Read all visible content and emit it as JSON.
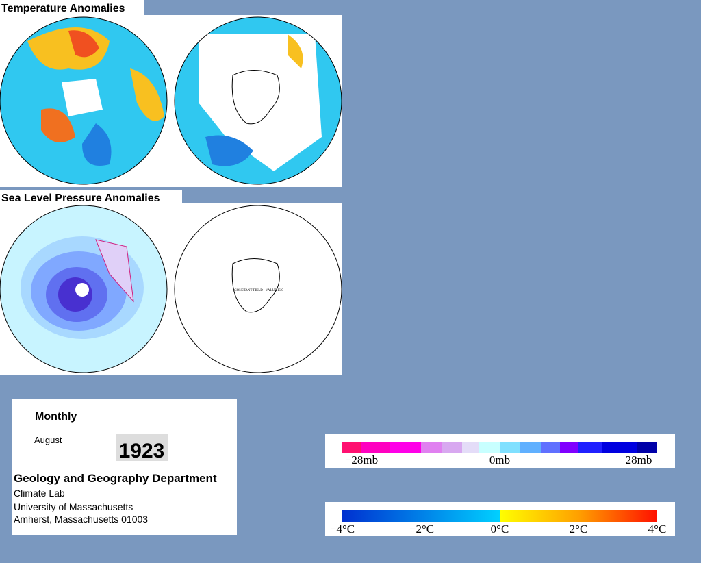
{
  "temperature_panel": {
    "title": "Temperature Anomalies"
  },
  "pressure_panel": {
    "title": "Sea Level Pressure Anomalies",
    "annotation": "CONSTANT FIELD - VALUE IS 0"
  },
  "info": {
    "period": "Monthly",
    "month": "August",
    "year": "1923",
    "department": "Geology and Geography Department",
    "lines": [
      "Climate Lab",
      "University of Massachusetts",
      "Amherst, Massachusetts 01003"
    ]
  },
  "pressure_scale": {
    "labels": [
      "−28mb",
      "0mb",
      "28mb"
    ]
  },
  "temperature_scale": {
    "labels": [
      "−4°C",
      "−2°C",
      "0°C",
      "2°C",
      "4°C"
    ]
  }
}
